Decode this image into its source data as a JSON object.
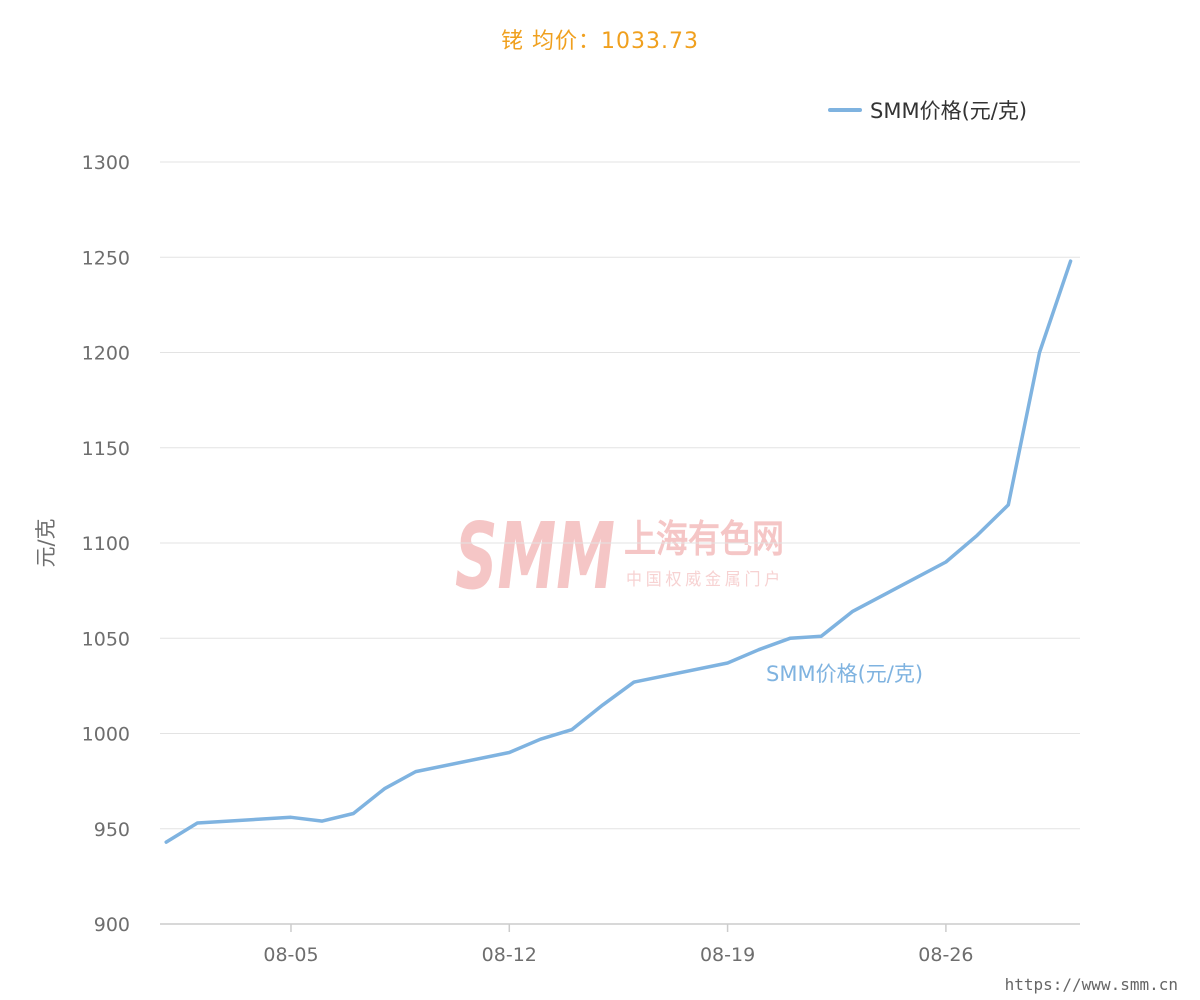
{
  "title": "铑 均价：1033.73",
  "footer_url": "https://www.smm.cn",
  "watermark": {
    "logo": "SMM",
    "name": "上海有色网",
    "tagline": "中国权威金属门户"
  },
  "chart_data": {
    "type": "line",
    "ylabel": "元/克",
    "ylim": [
      900,
      1300
    ],
    "yticks": [
      900,
      950,
      1000,
      1050,
      1100,
      1150,
      1200,
      1250,
      1300
    ],
    "grid": true,
    "legend_position": "top-right",
    "x_tick_labels": [
      {
        "label": "08-05",
        "index": 4
      },
      {
        "label": "08-12",
        "index": 11
      },
      {
        "label": "08-19",
        "index": 18
      },
      {
        "label": "08-26",
        "index": 25
      }
    ],
    "x_range_index": [
      -0.2,
      29.3
    ],
    "series": [
      {
        "name": "SMM价格(元/克)",
        "color": "#7fb3e0",
        "inline_label": "SMM价格(元/克)",
        "points": [
          {
            "i": 0,
            "y": 943
          },
          {
            "i": 1,
            "y": 953
          },
          {
            "i": 4,
            "y": 956
          },
          {
            "i": 5,
            "y": 954
          },
          {
            "i": 6,
            "y": 958
          },
          {
            "i": 7,
            "y": 971
          },
          {
            "i": 8,
            "y": 980
          },
          {
            "i": 11,
            "y": 990
          },
          {
            "i": 12,
            "y": 997
          },
          {
            "i": 13,
            "y": 1002
          },
          {
            "i": 14,
            "y": 1015
          },
          {
            "i": 15,
            "y": 1027
          },
          {
            "i": 18,
            "y": 1037
          },
          {
            "i": 19,
            "y": 1044
          },
          {
            "i": 20,
            "y": 1050
          },
          {
            "i": 21,
            "y": 1051
          },
          {
            "i": 22,
            "y": 1064
          },
          {
            "i": 25,
            "y": 1090
          },
          {
            "i": 26,
            "y": 1104
          },
          {
            "i": 27,
            "y": 1120
          },
          {
            "i": 28,
            "y": 1200
          },
          {
            "i": 29,
            "y": 1248
          }
        ]
      }
    ]
  }
}
